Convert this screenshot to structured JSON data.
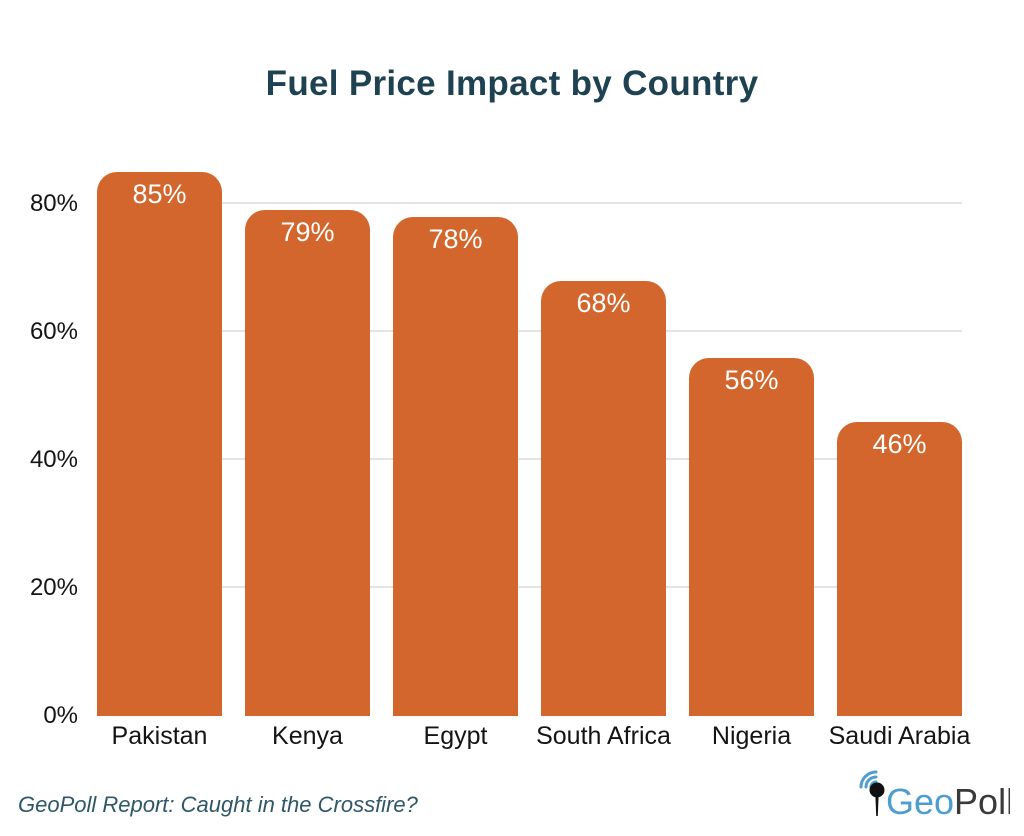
{
  "title": "Fuel Price Impact by Country",
  "chart_data": {
    "type": "bar",
    "title": "Fuel Price Impact by Country",
    "categories": [
      "Pakistan",
      "Kenya",
      "Egypt",
      "South Africa",
      "Nigeria",
      "Saudi Arabia"
    ],
    "values": [
      85,
      79,
      78,
      68,
      56,
      46
    ],
    "value_labels": [
      "85%",
      "79%",
      "78%",
      "68%",
      "56%",
      "46%"
    ],
    "xlabel": "",
    "ylabel": "",
    "ylim": [
      0,
      100
    ],
    "y_ticks": [
      {
        "label": "0%",
        "value": 0
      },
      {
        "label": "20%",
        "value": 20
      },
      {
        "label": "40%",
        "value": 40
      },
      {
        "label": "60%",
        "value": 60
      },
      {
        "label": "80%",
        "value": 80
      }
    ],
    "grid": true,
    "legend": false,
    "bar_color": "#D2662C",
    "value_label_color": "#FFFFFF",
    "grid_color": "#E3E3E3",
    "axis_text_color": "#141414"
  },
  "footer": {
    "source_text": "GeoPoll Report: Caught in the Crossfire?",
    "logo": {
      "geo": "Geo",
      "poll": "Poll",
      "geo_color": "#4E9DD1",
      "poll_color": "#3A3A3A",
      "icon": "signal-pin-icon"
    }
  },
  "colors": {
    "background": "#FFFFFF",
    "title": "#1E4251",
    "footer_text": "#2E5767"
  }
}
